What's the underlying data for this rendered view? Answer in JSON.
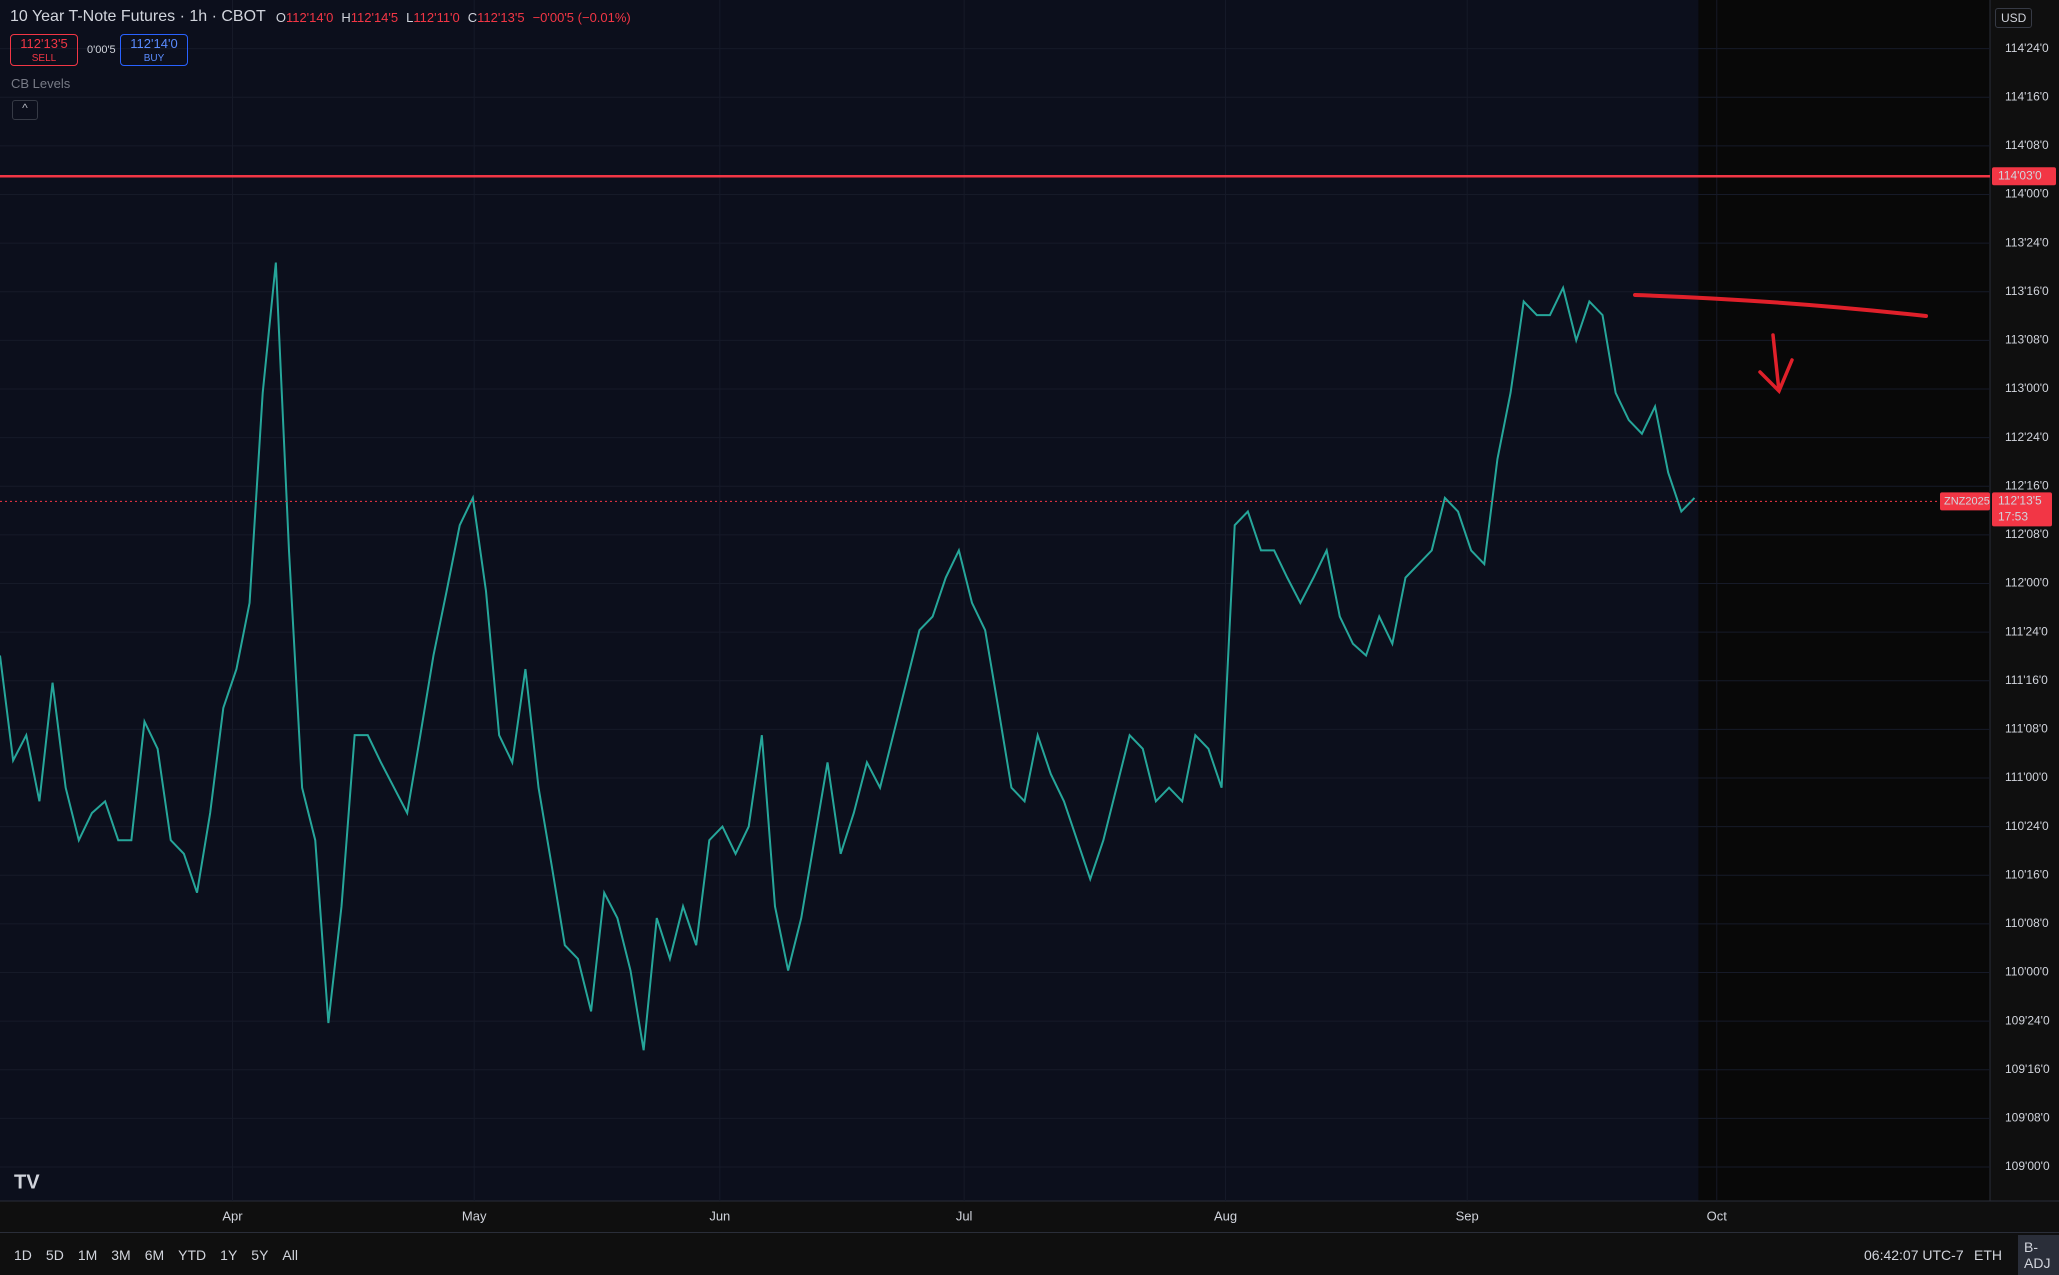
{
  "header": {
    "title": "10 Year T-Note Futures · 1h · CBOT",
    "ohlc": [
      {
        "key": "O",
        "value": "112'14'0"
      },
      {
        "key": "H",
        "value": "112'14'5"
      },
      {
        "key": "L",
        "value": "112'11'0"
      },
      {
        "key": "C",
        "value": "112'13'5"
      }
    ],
    "change": "−0'00'5 (−0.01%)",
    "sell": {
      "price": "112'13'5",
      "label": "SELL"
    },
    "spread": "0'00'5",
    "buy": {
      "price": "112'14'0",
      "label": "BUY"
    },
    "indicator": "CB Levels",
    "currency": "USD"
  },
  "chart_data": {
    "type": "line",
    "color": "#26a69a",
    "values": [
      111.63,
      111.09,
      111.22,
      110.88,
      111.49,
      110.95,
      110.68,
      110.82,
      110.88,
      110.68,
      110.68,
      111.29,
      111.15,
      110.68,
      110.61,
      110.41,
      110.82,
      111.36,
      111.56,
      111.9,
      112.98,
      113.65,
      112.17,
      110.95,
      110.68,
      109.74,
      110.34,
      111.22,
      111.22,
      111.08,
      110.95,
      110.82,
      111.22,
      111.63,
      111.96,
      112.3,
      112.44,
      111.96,
      111.22,
      111.08,
      111.56,
      110.95,
      110.55,
      110.14,
      110.07,
      109.8,
      110.41,
      110.28,
      110.01,
      109.6,
      110.28,
      110.07,
      110.34,
      110.14,
      110.68,
      110.75,
      110.61,
      110.75,
      111.22,
      110.34,
      110.01,
      110.28,
      110.68,
      111.08,
      110.61,
      110.82,
      111.08,
      110.95,
      111.22,
      111.49,
      111.76,
      111.83,
      112.03,
      112.17,
      111.9,
      111.76,
      111.36,
      110.95,
      110.88,
      111.22,
      111.02,
      110.88,
      110.68,
      110.48,
      110.68,
      110.95,
      111.22,
      111.15,
      110.88,
      110.95,
      110.88,
      111.22,
      111.15,
      110.95,
      112.3,
      112.37,
      112.17,
      112.17,
      112.03,
      111.9,
      112.03,
      112.17,
      111.83,
      111.69,
      111.63,
      111.83,
      111.69,
      112.03,
      112.1,
      112.17,
      112.44,
      112.37,
      112.17,
      112.1,
      112.64,
      112.98,
      113.45,
      113.38,
      113.38,
      113.52,
      113.25,
      113.45,
      113.38,
      112.98,
      112.84,
      112.77,
      112.91,
      112.57,
      112.37,
      112.44
    ],
    "xlim": [
      0,
      151.5
    ],
    "xticks": [
      {
        "value": 17.7,
        "label": "Apr"
      },
      {
        "value": 36.1,
        "label": "May"
      },
      {
        "value": 54.8,
        "label": "Jun"
      },
      {
        "value": 73.4,
        "label": "Jul"
      },
      {
        "value": 93.3,
        "label": "Aug"
      },
      {
        "value": 111.7,
        "label": "Sep"
      },
      {
        "value": 130.7,
        "label": "Oct"
      }
    ],
    "ylim": [
      108.825,
      115.0
    ],
    "yticks": [
      {
        "value": 114.75,
        "label": "114'24'0"
      },
      {
        "value": 114.5,
        "label": "114'16'0"
      },
      {
        "value": 114.25,
        "label": "114'08'0"
      },
      {
        "value": 114.0,
        "label": "114'00'0"
      },
      {
        "value": 113.75,
        "label": "113'24'0"
      },
      {
        "value": 113.5,
        "label": "113'16'0"
      },
      {
        "value": 113.25,
        "label": "113'08'0"
      },
      {
        "value": 113.0,
        "label": "113'00'0"
      },
      {
        "value": 112.75,
        "label": "112'24'0"
      },
      {
        "value": 112.5,
        "label": "112'16'0"
      },
      {
        "value": 112.25,
        "label": "112'08'0"
      },
      {
        "value": 112.0,
        "label": "112'00'0"
      },
      {
        "value": 111.75,
        "label": "111'24'0"
      },
      {
        "value": 111.5,
        "label": "111'16'0"
      },
      {
        "value": 111.25,
        "label": "111'08'0"
      },
      {
        "value": 111.0,
        "label": "111'00'0"
      },
      {
        "value": 110.75,
        "label": "110'24'0"
      },
      {
        "value": 110.5,
        "label": "110'16'0"
      },
      {
        "value": 110.25,
        "label": "110'08'0"
      },
      {
        "value": 110.0,
        "label": "110'00'0"
      },
      {
        "value": 109.75,
        "label": "109'24'0"
      },
      {
        "value": 109.5,
        "label": "109'16'0"
      },
      {
        "value": 109.25,
        "label": "109'08'0"
      },
      {
        "value": 109.0,
        "label": "109'00'0"
      }
    ],
    "hline": {
      "value": 114.09375,
      "label": "114'03'0",
      "color": "#f23645"
    },
    "last_price": {
      "value": 112.421875,
      "label": "112'13'5",
      "symbol": "ZNZ2025",
      "countdown": "17:53",
      "color": "#f23645"
    }
  },
  "footer": {
    "ranges": [
      "1D",
      "5D",
      "1M",
      "3M",
      "6M",
      "YTD",
      "1Y",
      "5Y",
      "All"
    ],
    "time": "06:42:07 UTC-7",
    "session": "ETH",
    "adjust": "B-ADJ"
  }
}
